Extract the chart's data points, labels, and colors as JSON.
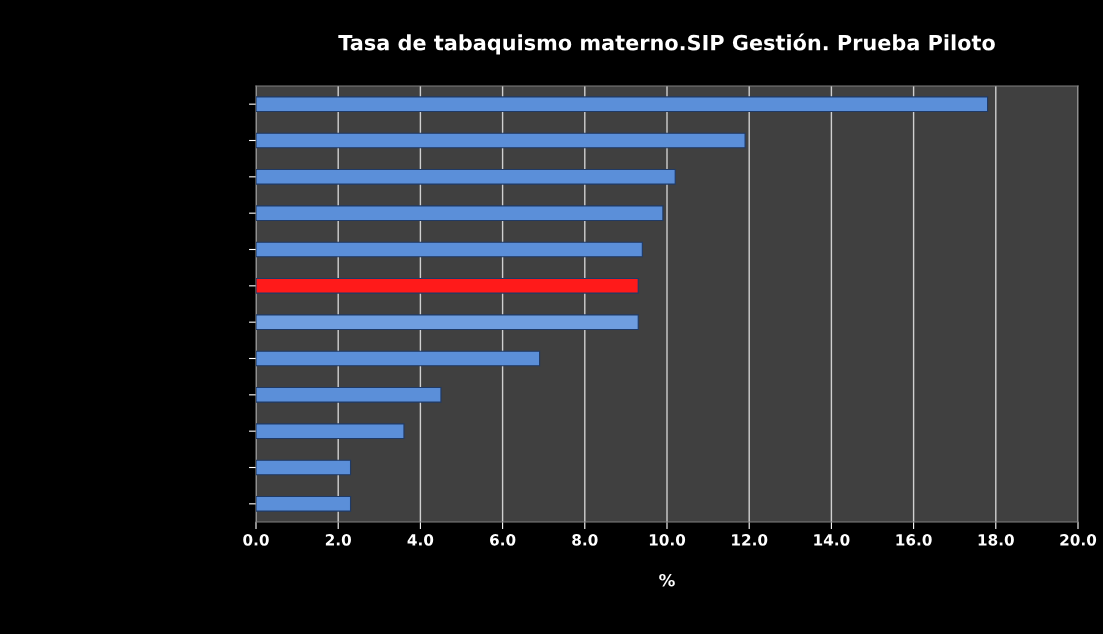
{
  "chart_data": {
    "type": "bar",
    "orientation": "horizontal",
    "title": "Tasa de tabaquismo materno.SIP Gestión. Prueba Piloto",
    "xlabel": "%",
    "categories": [
      null,
      null,
      null,
      null,
      null,
      null,
      null,
      null,
      null,
      null,
      null,
      null
    ],
    "values": [
      17.8,
      11.9,
      10.2,
      9.9,
      9.4,
      9.3,
      9.3,
      6.9,
      4.5,
      3.6,
      2.3,
      2.3
    ],
    "colors": [
      "#5b8fd9",
      "#5b8fd9",
      "#5b8fd9",
      "#5b8fd9",
      "#5b8fd9",
      "#ff1a1a",
      "#6f9ee0",
      "#5b8fd9",
      "#5b8fd9",
      "#5b8fd9",
      "#5b8fd9",
      "#5b8fd9"
    ],
    "xlim": [
      0,
      20
    ],
    "xticks": [
      {
        "value": 0,
        "label": "0.0"
      },
      {
        "value": 2,
        "label": "2.0"
      },
      {
        "value": 4,
        "label": "4.0"
      },
      {
        "value": 6,
        "label": "6.0"
      },
      {
        "value": 8,
        "label": "8.0"
      },
      {
        "value": 10,
        "label": "10.0"
      },
      {
        "value": 12,
        "label": "12.0"
      },
      {
        "value": 14,
        "label": "14.0"
      },
      {
        "value": 16,
        "label": "16.0"
      },
      {
        "value": 18,
        "label": "18.0"
      },
      {
        "value": 20,
        "label": "20.0"
      }
    ],
    "grid": "x"
  }
}
